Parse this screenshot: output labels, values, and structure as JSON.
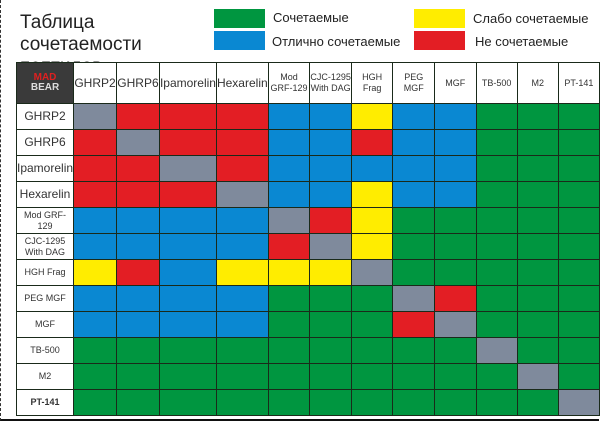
{
  "title": "Таблица сочетаемости пептидов",
  "legend": [
    {
      "code": "G",
      "label": "Сочетаемые",
      "color": "#009640"
    },
    {
      "code": "B",
      "label": "Отлично сочетаемые",
      "color": "#0a88d2"
    },
    {
      "code": "Y",
      "label": "Слабо сочетаемые",
      "color": "#ffed00"
    },
    {
      "code": "R",
      "label": "Не сочетаемые",
      "color": "#e31e24"
    }
  ],
  "self_color": "#7f8a9c",
  "logo": {
    "line1": "MAD",
    "line2": "BEAR"
  },
  "peptides": [
    "GHRP2",
    "GHRP6",
    "Ipamorelin",
    "Hexarelin",
    "Mod GRF-129",
    "CJC-1295 With DAG",
    "HGH Frag",
    "PEG MGF",
    "MGF",
    "TB-500",
    "M2",
    "PT-141"
  ],
  "matrix": [
    "XRRRBBYBBGGG",
    "RXRRBBRBBGGG",
    "RRXRBBBBBGGG",
    "RRRXBBYBBGGG",
    "BBBBXRYGGGGG",
    "BBBBRXYGGGGG",
    "YRBYYYXGGGGG",
    "BBBBGGGXRGGG",
    "BBBBGGGRXGGG",
    "GGGGGGGGGXGG",
    "GGGGGGGGGGXG",
    "GGGGGGGGGGGX"
  ]
}
